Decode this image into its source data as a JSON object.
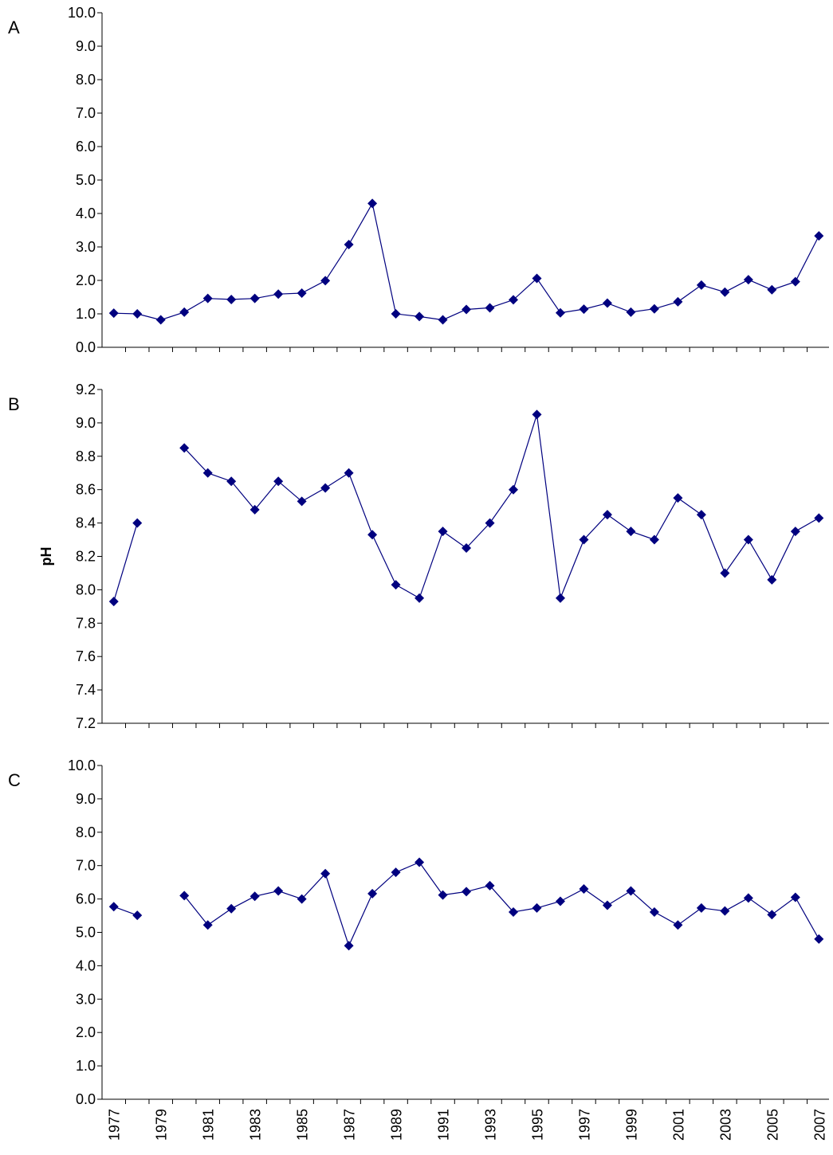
{
  "colors": {
    "series": "#00007F",
    "axis": "#000000"
  },
  "x_tick_labels": [
    "1977",
    "1979",
    "1981",
    "1983",
    "1985",
    "1987",
    "1989",
    "1991",
    "1993",
    "1995",
    "1997",
    "1999",
    "2001",
    "2003",
    "2005",
    "2007"
  ],
  "chart_data": [
    {
      "type": "line",
      "panel_label": "A",
      "ylabel": "",
      "ylim": [
        0,
        10
      ],
      "yticks": [
        "0.0",
        "1.0",
        "2.0",
        "3.0",
        "4.0",
        "5.0",
        "6.0",
        "7.0",
        "8.0",
        "9.0",
        "10.0"
      ],
      "x": [
        1977,
        1978,
        1979,
        1980,
        1981,
        1982,
        1983,
        1984,
        1985,
        1986,
        1987,
        1988,
        1989,
        1990,
        1991,
        1992,
        1993,
        1994,
        1995,
        1996,
        1997,
        1998,
        1999,
        2000,
        2001,
        2002,
        2003,
        2004,
        2005,
        2006,
        2007
      ],
      "values": [
        1.02,
        1.0,
        0.82,
        1.05,
        1.46,
        1.43,
        1.46,
        1.59,
        1.62,
        1.99,
        3.07,
        4.3,
        1.0,
        0.92,
        0.82,
        1.13,
        1.18,
        1.42,
        2.06,
        1.03,
        1.14,
        1.32,
        1.05,
        1.15,
        1.36,
        1.86,
        1.65,
        2.02,
        1.72,
        1.96,
        3.33
      ]
    },
    {
      "type": "line",
      "panel_label": "B",
      "ylabel": "pH",
      "ylim": [
        7.2,
        9.2
      ],
      "yticks": [
        "7.2",
        "7.4",
        "7.6",
        "7.8",
        "8.0",
        "8.2",
        "8.4",
        "8.6",
        "8.8",
        "9.0",
        "9.2"
      ],
      "x": [
        1977,
        1978,
        1979,
        1980,
        1981,
        1982,
        1983,
        1984,
        1985,
        1986,
        1987,
        1988,
        1989,
        1990,
        1991,
        1992,
        1993,
        1994,
        1995,
        1996,
        1997,
        1998,
        1999,
        2000,
        2001,
        2002,
        2003,
        2004,
        2005,
        2006,
        2007
      ],
      "values": [
        7.93,
        8.4,
        null,
        8.85,
        8.7,
        8.65,
        8.48,
        8.65,
        8.53,
        8.61,
        8.7,
        8.33,
        8.03,
        7.95,
        8.35,
        8.25,
        8.4,
        8.6,
        9.05,
        7.95,
        8.3,
        8.45,
        8.35,
        8.3,
        8.55,
        8.45,
        8.1,
        8.3,
        8.06,
        8.35,
        8.43
      ]
    },
    {
      "type": "line",
      "panel_label": "C",
      "ylabel": "",
      "ylim": [
        0,
        10
      ],
      "yticks": [
        "0.0",
        "1.0",
        "2.0",
        "3.0",
        "4.0",
        "5.0",
        "6.0",
        "7.0",
        "8.0",
        "9.0",
        "10.0"
      ],
      "x": [
        1977,
        1978,
        1979,
        1980,
        1981,
        1982,
        1983,
        1984,
        1985,
        1986,
        1987,
        1988,
        1989,
        1990,
        1991,
        1992,
        1993,
        1994,
        1995,
        1996,
        1997,
        1998,
        1999,
        2000,
        2001,
        2002,
        2003,
        2004,
        2005,
        2006,
        2007
      ],
      "values": [
        5.77,
        5.51,
        null,
        6.1,
        5.22,
        5.71,
        6.08,
        6.24,
        6.0,
        6.76,
        4.6,
        6.16,
        6.8,
        7.1,
        6.12,
        6.22,
        6.4,
        5.61,
        5.73,
        5.93,
        6.3,
        5.81,
        6.24,
        5.61,
        5.22,
        5.73,
        5.64,
        6.03,
        5.53,
        6.05,
        4.8
      ]
    }
  ]
}
